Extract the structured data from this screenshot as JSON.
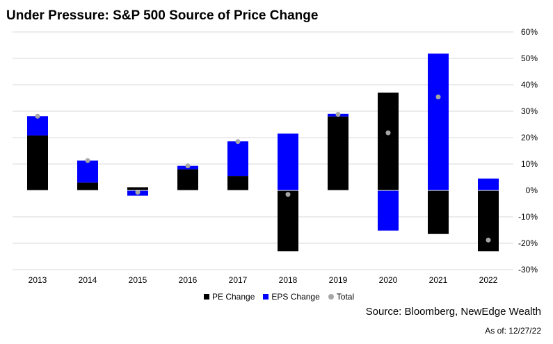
{
  "chart_data": {
    "type": "bar",
    "title": "Under Pressure: S&P 500 Source of Price Change",
    "categories": [
      "2013",
      "2014",
      "2015",
      "2016",
      "2017",
      "2018",
      "2019",
      "2020",
      "2021",
      "2022"
    ],
    "series": [
      {
        "name": "PE Change",
        "color": "#000000",
        "values": [
          20.8,
          3.0,
          1.2,
          8.0,
          5.5,
          -23.0,
          28.0,
          37.0,
          -16.5,
          -23.0
        ]
      },
      {
        "name": "EPS Change",
        "color": "#0000ff",
        "values": [
          7.3,
          8.3,
          -2.0,
          1.3,
          13.1,
          21.5,
          1.0,
          -15.2,
          51.8,
          4.5
        ]
      },
      {
        "name": "Total",
        "color": "#a6a6a6",
        "values": [
          28.1,
          11.3,
          -0.7,
          9.3,
          18.5,
          -1.5,
          28.8,
          21.8,
          35.4,
          -18.8
        ]
      }
    ],
    "ylim": [
      -30,
      60
    ],
    "yticks": [
      "60%",
      "50%",
      "40%",
      "30%",
      "20%",
      "10%",
      "0%",
      "-10%",
      "-20%",
      "-30%"
    ],
    "ytick_values": [
      60,
      50,
      40,
      30,
      20,
      10,
      0,
      -10,
      -20,
      -30
    ],
    "grid": true,
    "legend_position": "bottom-center",
    "source": "Source: Bloomberg, NewEdge Wealth",
    "as_of": "As of: 12/27/22"
  }
}
